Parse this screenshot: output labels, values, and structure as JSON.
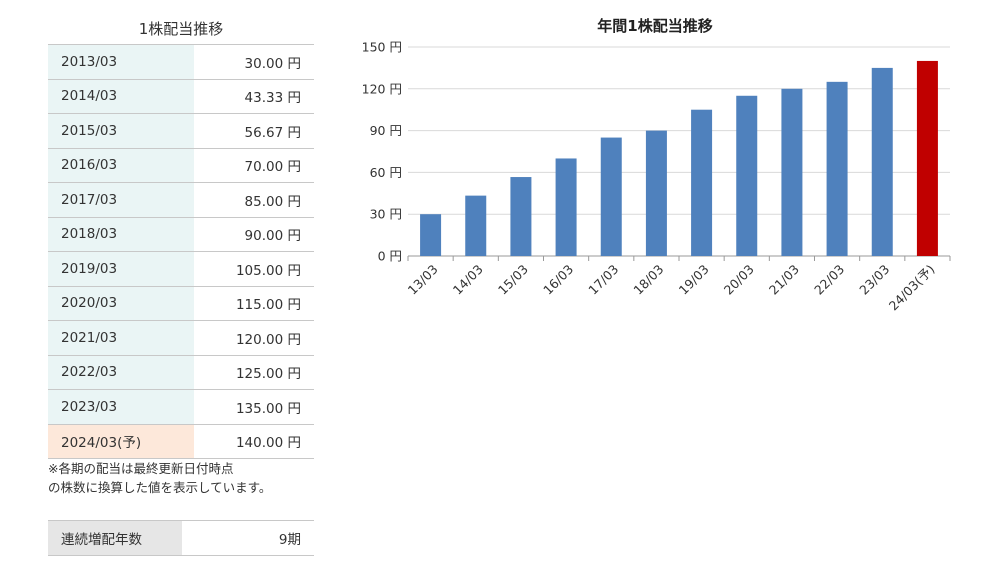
{
  "table": {
    "title": "1株配当推移",
    "rows": [
      {
        "period": "2013/03",
        "value": "30.00 円"
      },
      {
        "period": "2014/03",
        "value": "43.33 円"
      },
      {
        "period": "2015/03",
        "value": "56.67 円"
      },
      {
        "period": "2016/03",
        "value": "70.00 円"
      },
      {
        "period": "2017/03",
        "value": "85.00 円"
      },
      {
        "period": "2018/03",
        "value": "90.00 円"
      },
      {
        "period": "2019/03",
        "value": "105.00 円"
      },
      {
        "period": "2020/03",
        "value": "115.00 円"
      },
      {
        "period": "2021/03",
        "value": "120.00 円"
      },
      {
        "period": "2022/03",
        "value": "125.00 円"
      },
      {
        "period": "2023/03",
        "value": "135.00 円"
      },
      {
        "period": "2024/03(予)",
        "value": "140.00 円"
      }
    ]
  },
  "note": {
    "line1": "※各期の配当は最終更新日付時点",
    "line2": "の株数に換算した値を表示しています。"
  },
  "streak": {
    "label": "連続増配年数",
    "value": "9期"
  },
  "colors": {
    "bar": "#4f81bd",
    "forecast_bar": "#c00000",
    "period_bg": "#eaf5f5",
    "forecast_bg": "#fde8da"
  },
  "chart_data": {
    "type": "bar",
    "title": "年間1株配当推移",
    "categories": [
      "13/03",
      "14/03",
      "15/03",
      "16/03",
      "17/03",
      "18/03",
      "19/03",
      "20/03",
      "21/03",
      "22/03",
      "23/03",
      "24/03(予)"
    ],
    "values": [
      30.0,
      43.33,
      56.67,
      70.0,
      85.0,
      90.0,
      105.0,
      115.0,
      120.0,
      125.0,
      135.0,
      140.0
    ],
    "forecast_index": 11,
    "yticks": [
      "0 円",
      "30 円",
      "60 円",
      "90 円",
      "120 円",
      "150 円"
    ],
    "ylim": [
      0,
      150
    ],
    "grid": true,
    "legend": false
  }
}
